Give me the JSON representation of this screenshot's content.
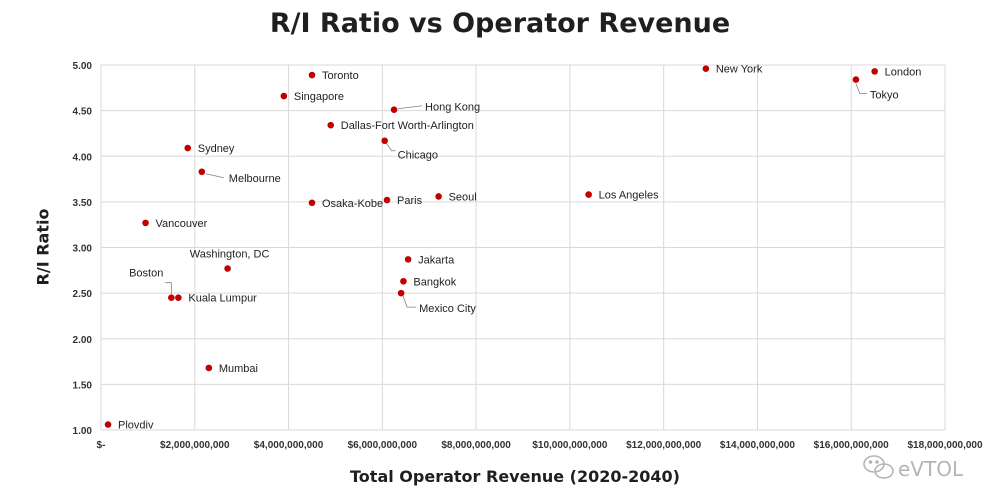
{
  "chart_data": {
    "type": "scatter",
    "title": "R/I Ratio vs Operator Revenue",
    "xlabel": "Total Operator Revenue (2020-2040)",
    "ylabel": "R/I Ratio",
    "xlim": [
      0,
      18000000000
    ],
    "ylim": [
      1.0,
      5.0
    ],
    "grid": true,
    "x_ticks": [
      {
        "value": 0,
        "label": "$-"
      },
      {
        "value": 2000000000,
        "label": "$2,000,000,000"
      },
      {
        "value": 4000000000,
        "label": "$4,000,000,000"
      },
      {
        "value": 6000000000,
        "label": "$6,000,000,000"
      },
      {
        "value": 8000000000,
        "label": "$8,000,000,000"
      },
      {
        "value": 10000000000,
        "label": "$10,000,000,000"
      },
      {
        "value": 12000000000,
        "label": "$12,000,000,000"
      },
      {
        "value": 14000000000,
        "label": "$14,000,000,000"
      },
      {
        "value": 16000000000,
        "label": "$16,000,000,000"
      },
      {
        "value": 18000000000,
        "label": "$18,000,000,000"
      }
    ],
    "y_ticks": [
      {
        "value": 1.0,
        "label": "1.00"
      },
      {
        "value": 1.5,
        "label": "1.50"
      },
      {
        "value": 2.0,
        "label": "2.00"
      },
      {
        "value": 2.5,
        "label": "2.50"
      },
      {
        "value": 3.0,
        "label": "3.00"
      },
      {
        "value": 3.5,
        "label": "3.50"
      },
      {
        "value": 4.0,
        "label": "4.00"
      },
      {
        "value": 4.5,
        "label": "4.50"
      },
      {
        "value": 5.0,
        "label": "5.00"
      }
    ],
    "marker_color": "#c00000",
    "points": [
      {
        "label": "Plovdiv",
        "x": 150000000,
        "y": 1.06
      },
      {
        "label": "Mumbai",
        "x": 2300000000,
        "y": 1.68
      },
      {
        "label": "Boston",
        "x": 1500000000,
        "y": 2.45
      },
      {
        "label": "Kuala Lumpur",
        "x": 1650000000,
        "y": 2.45
      },
      {
        "label": "Washington, DC",
        "x": 2700000000,
        "y": 2.77
      },
      {
        "label": "Vancouver",
        "x": 950000000,
        "y": 3.27
      },
      {
        "label": "Melbourne",
        "x": 2150000000,
        "y": 3.83
      },
      {
        "label": "Sydney",
        "x": 1850000000,
        "y": 4.09
      },
      {
        "label": "Singapore",
        "x": 3900000000,
        "y": 4.66
      },
      {
        "label": "Toronto",
        "x": 4500000000,
        "y": 4.89
      },
      {
        "label": "Dallas-Fort Worth-Arlington",
        "x": 4900000000,
        "y": 4.34
      },
      {
        "label": "Osaka-Kobe",
        "x": 4500000000,
        "y": 3.49
      },
      {
        "label": "Hong Kong",
        "x": 6250000000,
        "y": 4.51
      },
      {
        "label": "Chicago",
        "x": 6050000000,
        "y": 4.17
      },
      {
        "label": "Paris",
        "x": 6100000000,
        "y": 3.52
      },
      {
        "label": "Seoul",
        "x": 7200000000,
        "y": 3.56
      },
      {
        "label": "Jakarta",
        "x": 6550000000,
        "y": 2.87
      },
      {
        "label": "Bangkok",
        "x": 6450000000,
        "y": 2.63
      },
      {
        "label": "Mexico City",
        "x": 6400000000,
        "y": 2.5
      },
      {
        "label": "Los Angeles",
        "x": 10400000000,
        "y": 3.58
      },
      {
        "label": "New York",
        "x": 12900000000,
        "y": 4.96
      },
      {
        "label": "London",
        "x": 16500000000,
        "y": 4.93
      },
      {
        "label": "Tokyo",
        "x": 16100000000,
        "y": 4.84
      }
    ]
  },
  "watermark": {
    "text": "eVTOL"
  }
}
